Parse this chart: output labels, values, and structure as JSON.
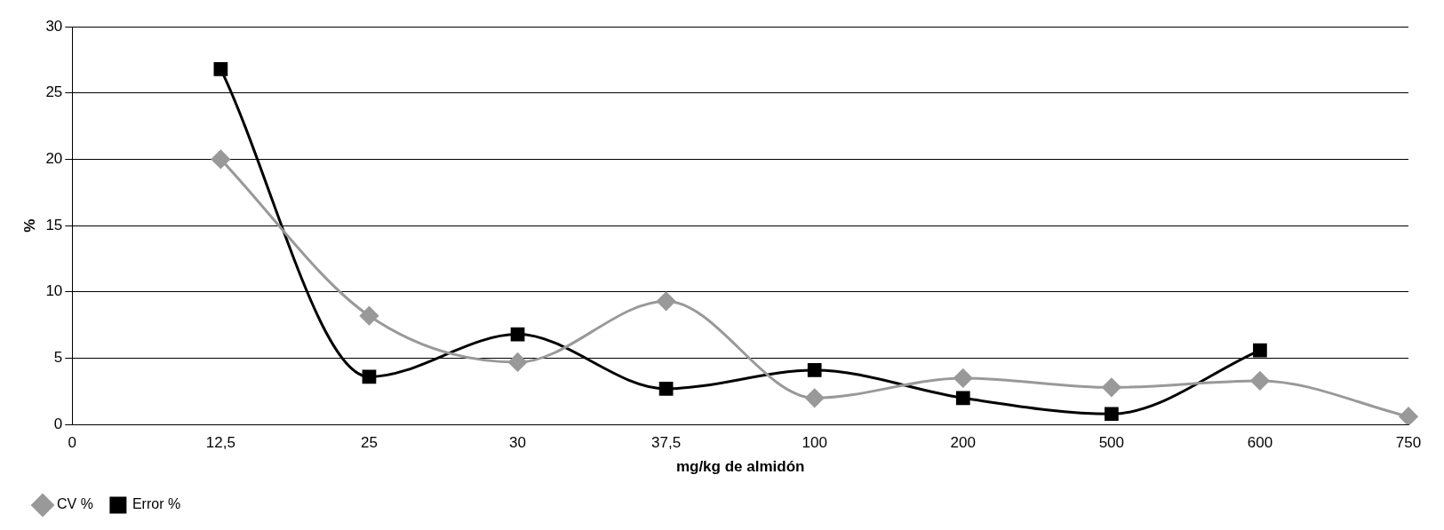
{
  "chart_data": {
    "type": "line",
    "xlabel": "mg/kg de almidón",
    "ylabel": "%",
    "categories": [
      "0",
      "12,5",
      "25",
      "30",
      "37,5",
      "100",
      "200",
      "500",
      "600",
      "750"
    ],
    "series": [
      {
        "name": "CV %",
        "color": "#999999",
        "marker": "diamond",
        "values": [
          null,
          20,
          8.2,
          4.7,
          9.3,
          2,
          3.5,
          2.8,
          3.3,
          0.6
        ]
      },
      {
        "name": "Error %",
        "color": "#000000",
        "marker": "square",
        "values": [
          null,
          26.8,
          3.6,
          6.8,
          2.7,
          4.1,
          2,
          0.8,
          5.6,
          null
        ]
      }
    ],
    "ylim": [
      0,
      30
    ],
    "yticks": [
      0,
      5,
      10,
      15,
      20,
      25,
      30
    ],
    "grid": "y",
    "legend": "bottom left"
  }
}
